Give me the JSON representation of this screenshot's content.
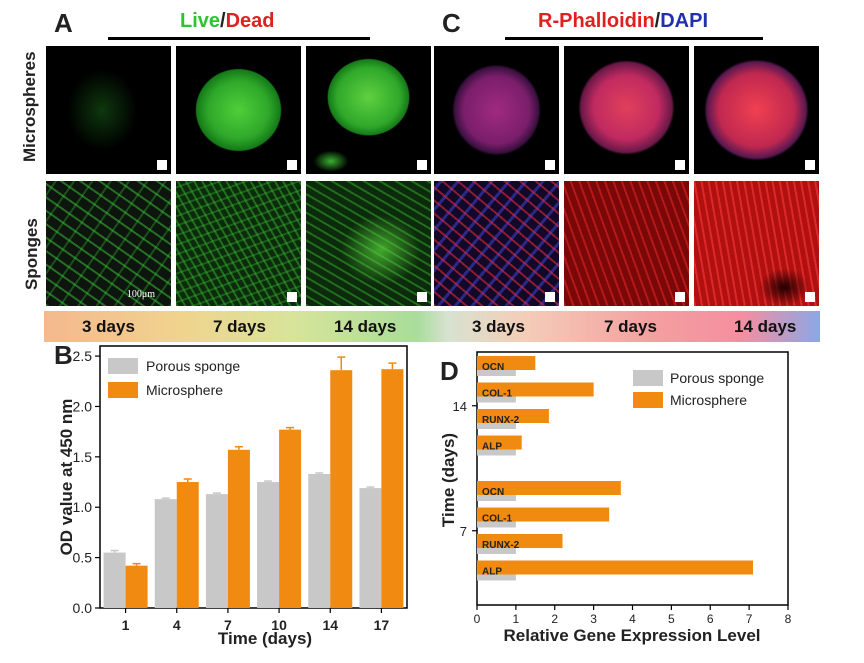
{
  "panel_a": {
    "letter": "A",
    "title_live": "Live",
    "title_sep": "/",
    "title_dead": "Dead",
    "row_labels": [
      "Microspheres",
      "Sponges"
    ],
    "scale_label": "100μm",
    "colors": {
      "live": "#2fc42f",
      "dead": "#e02020"
    }
  },
  "panel_c": {
    "letter": "C",
    "title_phalloidin": "R-Phalloidin",
    "title_sep": "/",
    "title_dapi": "DAPI",
    "colors": {
      "phalloidin": "#e02020",
      "dapi": "#2030b0"
    }
  },
  "day_labels": [
    "3 days",
    "7 days",
    "14 days",
    "3 days",
    "7 days",
    "14 days"
  ],
  "chart_data": [
    {
      "panel": "B",
      "type": "bar",
      "xlabel": "Time (days)",
      "ylabel": "OD value at 450 nm",
      "categories": [
        "1",
        "4",
        "7",
        "10",
        "14",
        "17"
      ],
      "ylim": [
        0,
        2.6
      ],
      "yticks": [
        "0.0",
        "0.5",
        "1.0",
        "1.5",
        "2.0",
        "2.5"
      ],
      "series": [
        {
          "name": "Porous sponge",
          "color": "#c8c8c8",
          "values": [
            0.55,
            1.08,
            1.13,
            1.25,
            1.33,
            1.19
          ],
          "errors": [
            0.02,
            0.01,
            0.01,
            0.01,
            0.01,
            0.01
          ]
        },
        {
          "name": "Microsphere",
          "color": "#f08a10",
          "values": [
            0.42,
            1.25,
            1.57,
            1.77,
            2.36,
            2.37
          ],
          "errors": [
            0.02,
            0.03,
            0.03,
            0.02,
            0.13,
            0.06
          ]
        }
      ],
      "legend": "top-left"
    },
    {
      "panel": "D",
      "type": "bar",
      "orientation": "horizontal",
      "xlabel": "Relative Gene Expression Level",
      "ylabel": "Time (days)",
      "xlim": [
        0,
        8
      ],
      "xticks": [
        "0",
        "1",
        "2",
        "3",
        "4",
        "5",
        "6",
        "7",
        "8"
      ],
      "groups": [
        {
          "name": "14",
          "genes": [
            "OCN",
            "COL-1",
            "RUNX-2",
            "ALP"
          ],
          "sponge": [
            1,
            1,
            1,
            1
          ],
          "microsphere": [
            1.5,
            3.0,
            1.85,
            1.15
          ]
        },
        {
          "name": "7",
          "genes": [
            "OCN",
            "COL-1",
            "RUNX-2",
            "ALP"
          ],
          "sponge": [
            1,
            1,
            1,
            1
          ],
          "microsphere": [
            3.7,
            3.4,
            2.2,
            7.1
          ]
        }
      ],
      "series": [
        {
          "name": "Porous sponge",
          "color": "#c8c8c8"
        },
        {
          "name": "Microsphere",
          "color": "#f08a10"
        }
      ],
      "legend": "top-right"
    }
  ]
}
